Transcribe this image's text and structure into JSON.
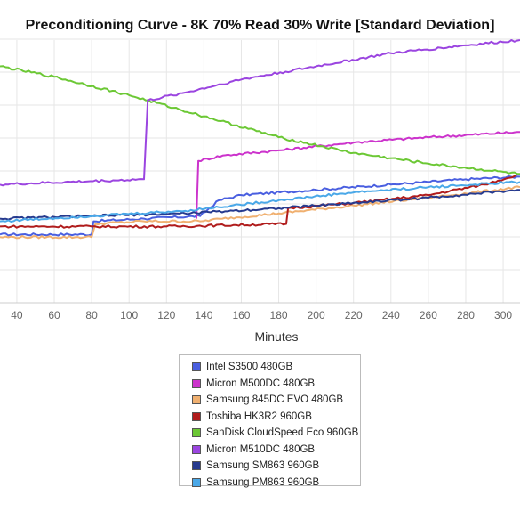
{
  "chart_data": {
    "type": "line",
    "title": "Preconditioning Curve - 8K 70% Read 30% Write [Standard Deviation]",
    "xlabel": "Minutes",
    "ylabel": "",
    "xlim": [
      31,
      309
    ],
    "ylim": [
      0,
      10
    ],
    "x_ticks": [
      40,
      60,
      80,
      100,
      120,
      140,
      160,
      180,
      200,
      220,
      240,
      260,
      280,
      300
    ],
    "grid": true,
    "legend_position": "bottom-center",
    "series": [
      {
        "name": "Intel S3500 480GB",
        "color": "#4a5fe0",
        "points": [
          [
            31,
            2.6
          ],
          [
            80,
            2.6
          ],
          [
            81,
            3.1
          ],
          [
            108,
            3.2
          ],
          [
            138,
            3.3
          ],
          [
            148,
            3.9
          ],
          [
            160,
            4.1
          ],
          [
            200,
            4.3
          ],
          [
            240,
            4.5
          ],
          [
            280,
            4.7
          ],
          [
            309,
            4.8
          ]
        ]
      },
      {
        "name": "Micron M500DC 480GB",
        "color": "#cc33cc",
        "points": [
          [
            136,
            3.2
          ],
          [
            137,
            5.4
          ],
          [
            150,
            5.6
          ],
          [
            180,
            5.8
          ],
          [
            220,
            6.1
          ],
          [
            260,
            6.3
          ],
          [
            309,
            6.5
          ]
        ]
      },
      {
        "name": "Samsung 845DC EVO 480GB",
        "color": "#f0b070",
        "points": [
          [
            31,
            2.5
          ],
          [
            80,
            2.5
          ],
          [
            82,
            3.0
          ],
          [
            108,
            3.1
          ],
          [
            138,
            3.1
          ],
          [
            150,
            3.2
          ],
          [
            180,
            3.4
          ],
          [
            220,
            3.7
          ],
          [
            260,
            4.0
          ],
          [
            309,
            4.4
          ]
        ]
      },
      {
        "name": "Toshiba HK3R2 960GB",
        "color": "#b01c1c",
        "points": [
          [
            31,
            2.9
          ],
          [
            80,
            2.9
          ],
          [
            120,
            2.9
          ],
          [
            184,
            3.0
          ],
          [
            185,
            3.6
          ],
          [
            220,
            3.8
          ],
          [
            260,
            4.1
          ],
          [
            290,
            4.5
          ],
          [
            309,
            4.9
          ]
        ]
      },
      {
        "name": "SanDisk CloudSpeed Eco 960GB",
        "color": "#6cc835",
        "points": [
          [
            31,
            9.0
          ],
          [
            60,
            8.6
          ],
          [
            100,
            7.9
          ],
          [
            140,
            7.1
          ],
          [
            180,
            6.3
          ],
          [
            220,
            5.7
          ],
          [
            260,
            5.3
          ],
          [
            309,
            4.9
          ]
        ]
      },
      {
        "name": "Micron M510DC 480GB",
        "color": "#9b45e0",
        "points": [
          [
            31,
            4.5
          ],
          [
            108,
            4.7
          ],
          [
            110,
            7.7
          ],
          [
            130,
            8.0
          ],
          [
            160,
            8.5
          ],
          [
            200,
            9.0
          ],
          [
            240,
            9.5
          ],
          [
            280,
            9.8
          ],
          [
            309,
            10.0
          ]
        ]
      },
      {
        "name": "Samsung SM863 960GB",
        "color": "#263a8e",
        "points": [
          [
            31,
            3.2
          ],
          [
            80,
            3.3
          ],
          [
            130,
            3.4
          ],
          [
            180,
            3.6
          ],
          [
            220,
            3.8
          ],
          [
            260,
            4.0
          ],
          [
            309,
            4.3
          ]
        ]
      },
      {
        "name": "Samsung PM863 960GB",
        "color": "#4aa8e8",
        "points": [
          [
            31,
            3.1
          ],
          [
            80,
            3.3
          ],
          [
            130,
            3.5
          ],
          [
            180,
            3.9
          ],
          [
            220,
            4.2
          ],
          [
            260,
            4.4
          ],
          [
            309,
            4.6
          ]
        ]
      }
    ]
  }
}
